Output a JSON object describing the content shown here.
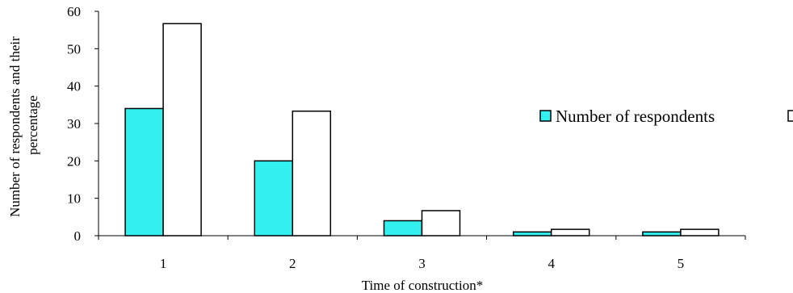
{
  "chart_data": {
    "type": "bar",
    "title": "",
    "xlabel": "Time of construction*",
    "ylabel": "Number of respondents and their percentage",
    "ylabel_lines": [
      "Number of respondents and their",
      "percentage"
    ],
    "categories": [
      "1",
      "2",
      "3",
      "4",
      "5"
    ],
    "series": [
      {
        "name": "Number of respondents",
        "values": [
          34,
          20,
          4,
          1,
          1
        ],
        "color": "#33f0f0"
      },
      {
        "name": "",
        "values": [
          56.7,
          33.3,
          6.7,
          1.7,
          1.7
        ],
        "color": "#ffffff"
      }
    ],
    "ylim": [
      0,
      60
    ],
    "yticks": [
      0,
      10,
      20,
      30,
      40,
      50,
      60
    ],
    "grid": false,
    "legend_position": "right"
  }
}
